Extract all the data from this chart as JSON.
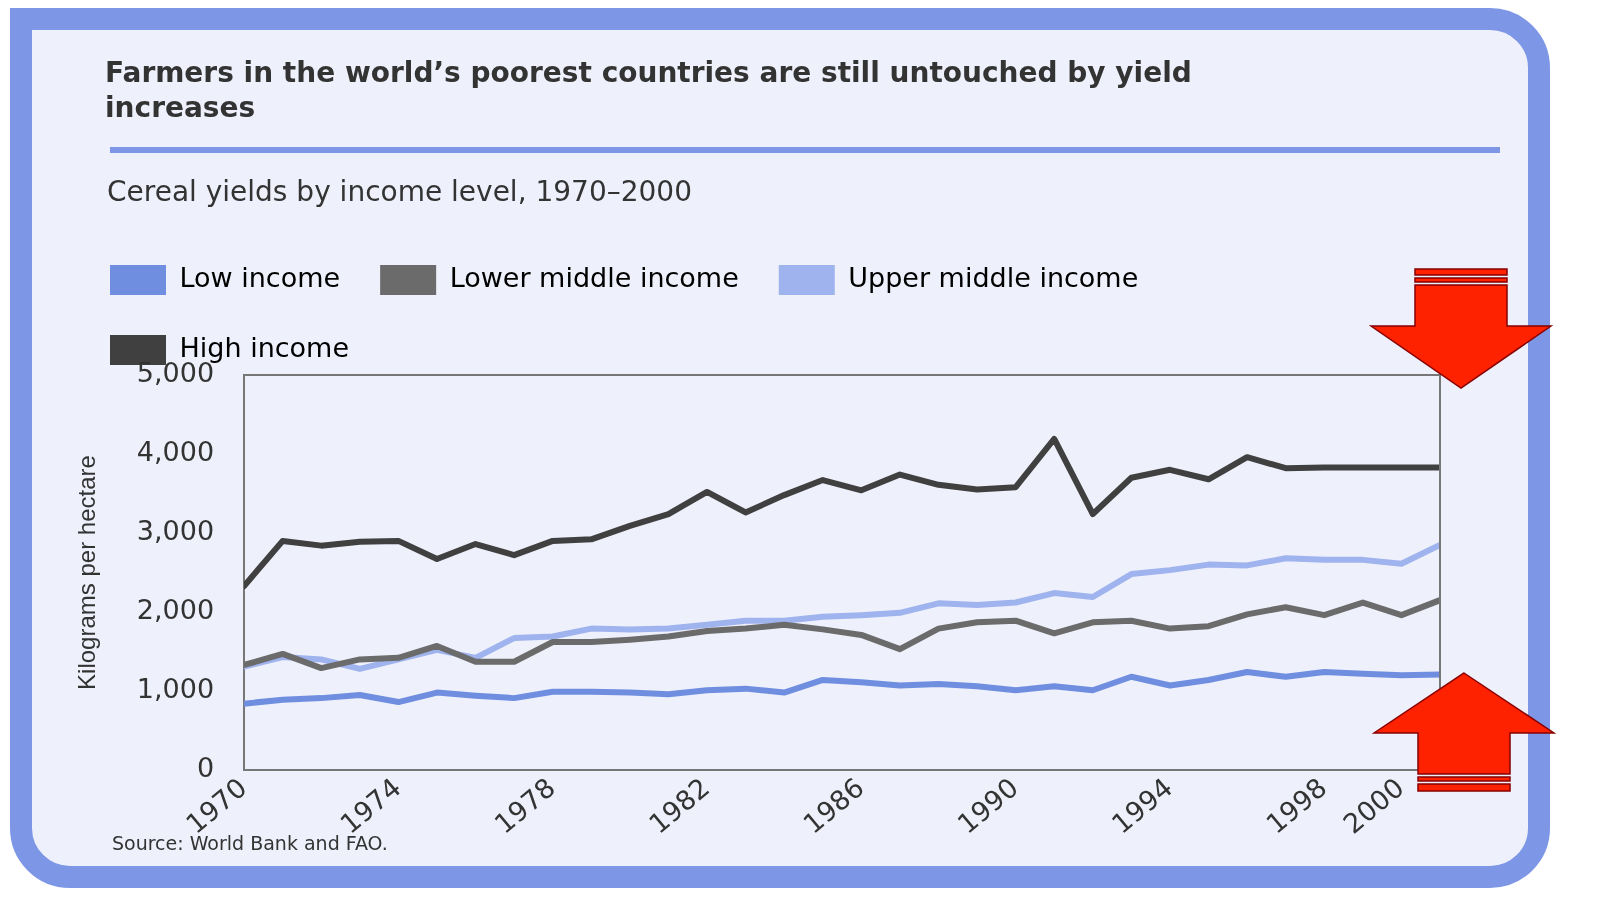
{
  "chart_data": {
    "type": "line",
    "title": "Farmers in the world’s poorest countries are still untouched by yield increases",
    "subtitle": "Cereal yields by income level, 1970–2000",
    "ylabel": "Kilograms per hectare",
    "annotations": [
      "Source: World Bank and FAO."
    ],
    "x": [
      1970,
      1971,
      1972,
      1973,
      1974,
      1975,
      1976,
      1977,
      1978,
      1979,
      1980,
      1981,
      1982,
      1983,
      1984,
      1985,
      1986,
      1987,
      1988,
      1989,
      1990,
      1991,
      1992,
      1993,
      1994,
      1995,
      1996,
      1997,
      1998,
      1999,
      2000,
      2001
    ],
    "series": [
      {
        "name": "Low income",
        "color": "#6f8ee0",
        "values": [
          840,
          890,
          910,
          950,
          860,
          980,
          940,
          910,
          990,
          990,
          980,
          960,
          1010,
          1030,
          980,
          1140,
          1110,
          1070,
          1090,
          1060,
          1010,
          1060,
          1010,
          1180,
          1070,
          1140,
          1240,
          1180,
          1240,
          1220,
          1200,
          1210
        ]
      },
      {
        "name": "Lower middle income",
        "color": "#6b6b6b",
        "values": [
          1330,
          1470,
          1290,
          1400,
          1420,
          1570,
          1370,
          1370,
          1620,
          1620,
          1650,
          1690,
          1760,
          1790,
          1840,
          1780,
          1710,
          1530,
          1790,
          1870,
          1890,
          1730,
          1870,
          1890,
          1790,
          1820,
          1970,
          2060,
          1960,
          2120,
          1960,
          2150
        ]
      },
      {
        "name": "Upper middle income",
        "color": "#9fb3ee",
        "values": [
          1310,
          1430,
          1400,
          1280,
          1400,
          1520,
          1420,
          1670,
          1690,
          1790,
          1780,
          1790,
          1840,
          1890,
          1890,
          1940,
          1960,
          1990,
          2110,
          2090,
          2120,
          2240,
          2190,
          2480,
          2530,
          2600,
          2590,
          2680,
          2660,
          2660,
          2610,
          2850
        ]
      },
      {
        "name": "High income",
        "color": "#404040",
        "values": [
          2330,
          2900,
          2840,
          2890,
          2900,
          2670,
          2860,
          2720,
          2900,
          2920,
          3090,
          3240,
          3520,
          3260,
          3480,
          3670,
          3540,
          3740,
          3610,
          3550,
          3580,
          4190,
          3240,
          3700,
          3800,
          3680,
          3960,
          3820,
          3830,
          3830,
          3830,
          3830
        ]
      }
    ],
    "xlim": [
      1970,
      2001
    ],
    "xticks": [
      1970,
      1974,
      1978,
      1982,
      1986,
      1990,
      1994,
      1998,
      2000
    ],
    "ylim": [
      0,
      5000
    ],
    "yticks": [
      {
        "value": 0,
        "label": "0"
      },
      {
        "value": 1000,
        "label": "1,000"
      },
      {
        "value": 2000,
        "label": "2,000"
      },
      {
        "value": 3000,
        "label": "3,000"
      },
      {
        "value": 4000,
        "label": "4,000"
      },
      {
        "value": 5000,
        "label": "5,000"
      }
    ],
    "grid": false,
    "legend": "top left",
    "marker": "none",
    "line_style": "solid"
  }
}
